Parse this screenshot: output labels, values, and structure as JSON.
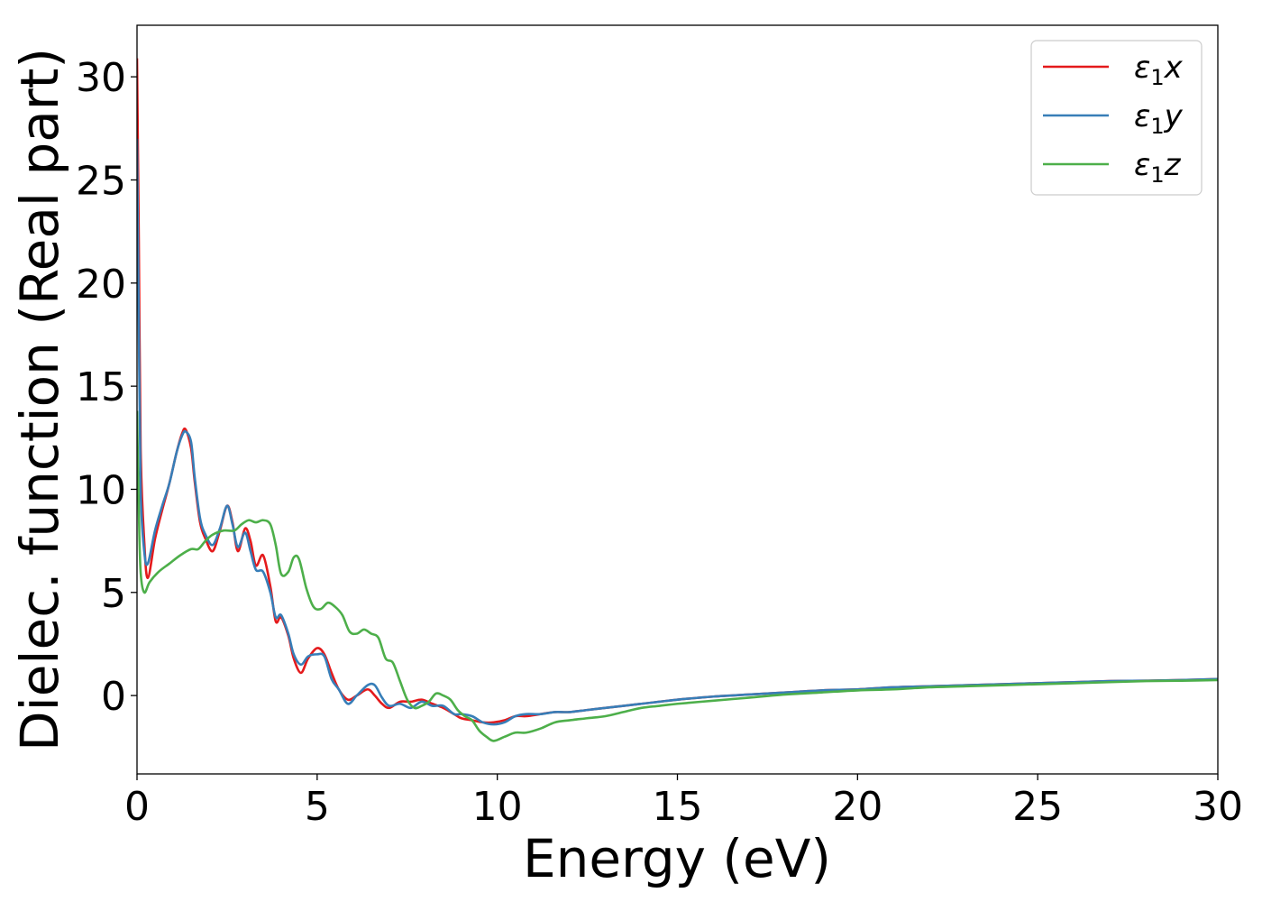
{
  "chart_data": {
    "type": "line",
    "title": "",
    "xlabel": "Energy (eV)",
    "ylabel": "Dielec. function (Real part)",
    "xlim": [
      0,
      30
    ],
    "ylim": [
      -3.8,
      32.5
    ],
    "xticks": [
      0,
      5,
      10,
      15,
      20,
      25,
      30
    ],
    "yticks": [
      0,
      5,
      10,
      15,
      20,
      25,
      30
    ],
    "grid": false,
    "legend_position": "top-right",
    "series": [
      {
        "name": "ε₁x",
        "legend_main": "ε",
        "legend_sub": "1",
        "legend_suffix": "x",
        "color": "#e41a1c",
        "x": [
          0,
          0.05,
          0.1,
          0.2,
          0.3,
          0.5,
          0.7,
          0.9,
          1.1,
          1.25,
          1.35,
          1.5,
          1.6,
          1.75,
          1.9,
          2.1,
          2.3,
          2.5,
          2.65,
          2.8,
          3.0,
          3.15,
          3.3,
          3.5,
          3.7,
          3.85,
          4.0,
          4.2,
          4.35,
          4.55,
          4.75,
          5.0,
          5.2,
          5.4,
          5.6,
          5.85,
          6.1,
          6.4,
          6.6,
          6.8,
          7.0,
          7.3,
          7.6,
          7.9,
          8.2,
          8.5,
          8.8,
          9.0,
          9.3,
          9.6,
          9.9,
          10.2,
          10.5,
          10.8,
          11.2,
          11.6,
          12.0,
          12.5,
          13.0,
          13.5,
          14.0,
          14.5,
          15.0,
          16.0,
          17.0,
          18.0,
          19.0,
          20.0,
          21.0,
          22.0,
          23.0,
          24.0,
          25.0,
          26.0,
          27.0,
          28.0,
          29.0,
          30.0
        ],
        "y": [
          30.9,
          22.0,
          12.0,
          7.5,
          5.7,
          7.6,
          9.0,
          10.3,
          11.8,
          12.7,
          12.9,
          12.0,
          10.4,
          8.4,
          7.6,
          7.0,
          8.0,
          9.2,
          8.4,
          7.0,
          8.1,
          7.5,
          6.3,
          6.8,
          5.3,
          3.6,
          3.8,
          2.9,
          1.8,
          1.1,
          1.8,
          2.3,
          2.0,
          1.1,
          0.3,
          -0.2,
          0.0,
          0.3,
          0.0,
          -0.4,
          -0.6,
          -0.3,
          -0.3,
          -0.2,
          -0.4,
          -0.6,
          -0.9,
          -1.1,
          -1.2,
          -1.3,
          -1.3,
          -1.2,
          -1.0,
          -1.0,
          -0.9,
          -0.8,
          -0.8,
          -0.7,
          -0.6,
          -0.5,
          -0.4,
          -0.3,
          -0.2,
          -0.05,
          0.05,
          0.15,
          0.25,
          0.3,
          0.4,
          0.45,
          0.5,
          0.55,
          0.6,
          0.65,
          0.7,
          0.72,
          0.75,
          0.8
        ]
      },
      {
        "name": "ε₁y",
        "legend_main": "ε",
        "legend_sub": "1",
        "legend_suffix": "y",
        "color": "#377eb8",
        "x": [
          0,
          0.05,
          0.1,
          0.2,
          0.3,
          0.5,
          0.7,
          0.9,
          1.1,
          1.25,
          1.35,
          1.5,
          1.6,
          1.75,
          1.9,
          2.1,
          2.3,
          2.5,
          2.65,
          2.8,
          3.0,
          3.15,
          3.3,
          3.5,
          3.7,
          3.85,
          4.0,
          4.2,
          4.35,
          4.55,
          4.75,
          5.0,
          5.2,
          5.4,
          5.6,
          5.85,
          6.1,
          6.4,
          6.6,
          6.8,
          7.0,
          7.3,
          7.6,
          7.9,
          8.2,
          8.5,
          8.8,
          9.0,
          9.3,
          9.6,
          9.9,
          10.2,
          10.5,
          10.8,
          11.2,
          11.6,
          12.0,
          12.5,
          13.0,
          13.5,
          14.0,
          14.5,
          15.0,
          16.0,
          17.0,
          18.0,
          19.0,
          20.0,
          21.0,
          22.0,
          23.0,
          24.0,
          25.0,
          26.0,
          27.0,
          28.0,
          29.0,
          30.0
        ],
        "y": [
          27.0,
          18.0,
          10.0,
          7.0,
          6.4,
          8.0,
          9.2,
          10.3,
          11.8,
          12.6,
          12.8,
          12.3,
          10.6,
          8.6,
          7.8,
          7.3,
          8.1,
          9.2,
          8.3,
          7.2,
          7.9,
          7.0,
          6.1,
          6.0,
          5.0,
          3.8,
          3.9,
          3.0,
          2.0,
          1.5,
          1.9,
          2.0,
          1.9,
          0.8,
          0.3,
          -0.4,
          0.0,
          0.5,
          0.5,
          -0.1,
          -0.5,
          -0.4,
          -0.6,
          -0.3,
          -0.5,
          -0.5,
          -0.9,
          -0.9,
          -1.0,
          -1.3,
          -1.4,
          -1.3,
          -1.0,
          -0.9,
          -0.9,
          -0.8,
          -0.8,
          -0.7,
          -0.6,
          -0.5,
          -0.4,
          -0.3,
          -0.2,
          -0.05,
          0.05,
          0.15,
          0.25,
          0.3,
          0.4,
          0.45,
          0.5,
          0.55,
          0.6,
          0.65,
          0.7,
          0.72,
          0.75,
          0.8
        ]
      },
      {
        "name": "ε₁z",
        "legend_main": "ε",
        "legend_sub": "1",
        "legend_suffix": "z",
        "color": "#4daf4a",
        "x": [
          0,
          0.05,
          0.1,
          0.2,
          0.35,
          0.6,
          0.9,
          1.2,
          1.5,
          1.7,
          1.9,
          2.1,
          2.4,
          2.7,
          2.9,
          3.1,
          3.3,
          3.5,
          3.7,
          3.85,
          4.0,
          4.2,
          4.35,
          4.5,
          4.7,
          4.9,
          5.1,
          5.3,
          5.5,
          5.7,
          5.9,
          6.1,
          6.3,
          6.5,
          6.7,
          6.9,
          7.1,
          7.3,
          7.5,
          7.7,
          7.9,
          8.1,
          8.3,
          8.5,
          8.7,
          8.9,
          9.1,
          9.3,
          9.5,
          9.7,
          9.9,
          10.2,
          10.5,
          10.8,
          11.2,
          11.6,
          12.0,
          12.5,
          13.0,
          13.5,
          14.0,
          14.5,
          15.0,
          16.0,
          17.0,
          18.0,
          19.0,
          20.0,
          21.0,
          22.0,
          23.0,
          24.0,
          25.0,
          26.0,
          27.0,
          28.0,
          29.0,
          30.0
        ],
        "y": [
          13.8,
          9.0,
          6.0,
          5.0,
          5.5,
          6.0,
          6.4,
          6.8,
          7.1,
          7.1,
          7.5,
          7.8,
          8.0,
          8.0,
          8.3,
          8.5,
          8.4,
          8.5,
          8.3,
          7.3,
          5.9,
          6.0,
          6.7,
          6.6,
          5.2,
          4.3,
          4.2,
          4.5,
          4.3,
          3.9,
          3.1,
          3.0,
          3.2,
          3.0,
          2.8,
          1.8,
          1.6,
          0.7,
          -0.2,
          -0.6,
          -0.5,
          -0.3,
          0.1,
          0.0,
          -0.2,
          -0.7,
          -1.0,
          -1.2,
          -1.7,
          -2.0,
          -2.2,
          -2.0,
          -1.8,
          -1.8,
          -1.6,
          -1.3,
          -1.2,
          -1.1,
          -1.0,
          -0.8,
          -0.6,
          -0.5,
          -0.4,
          -0.25,
          -0.1,
          0.05,
          0.15,
          0.25,
          0.3,
          0.4,
          0.45,
          0.5,
          0.55,
          0.6,
          0.65,
          0.7,
          0.72,
          0.75
        ]
      }
    ]
  }
}
